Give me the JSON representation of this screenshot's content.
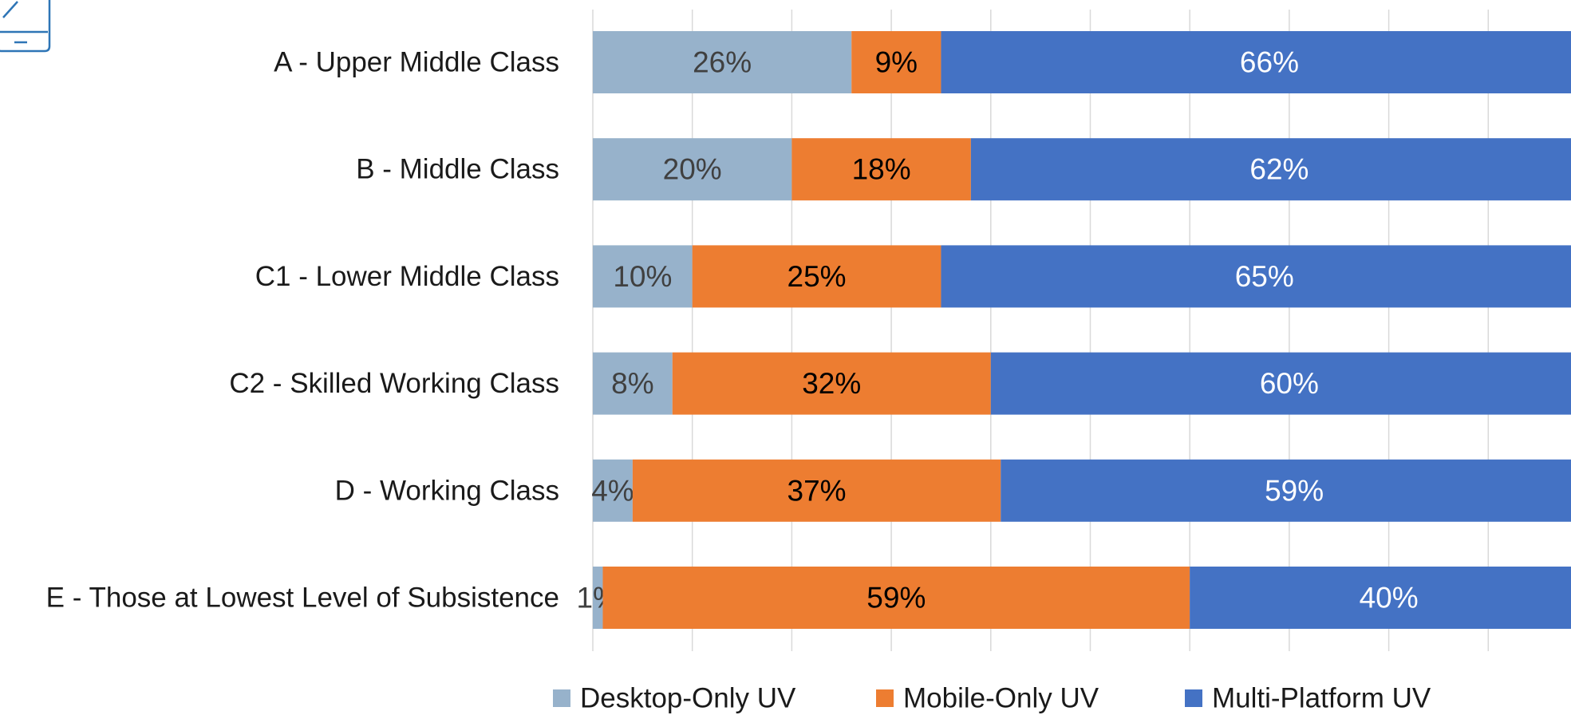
{
  "chart_data": {
    "type": "stacked_barh",
    "categories": [
      "A - Upper Middle Class",
      "B - Middle Class",
      "C1 - Lower Middle Class",
      "C2 - Skilled Working Class",
      "D - Working Class",
      "E - Those at Lowest Level of Subsistence"
    ],
    "series": [
      {
        "name": "Desktop-Only UV",
        "color": "#97b2cb",
        "label_color": "#404040",
        "values": [
          26,
          20,
          10,
          8,
          4,
          1
        ],
        "value_labels": [
          "26%",
          "20%",
          "10%",
          "8%",
          "4%",
          "1%"
        ]
      },
      {
        "name": "Mobile-Only UV",
        "color": "#ed7d31",
        "label_color": "#000000",
        "values": [
          9,
          18,
          25,
          32,
          37,
          59
        ],
        "value_labels": [
          "9%",
          "18%",
          "25%",
          "32%",
          "37%",
          "59%"
        ]
      },
      {
        "name": "Multi-Platform UV",
        "color": "#4472c4",
        "label_color": "#ffffff",
        "values": [
          66,
          62,
          65,
          60,
          59,
          40
        ],
        "value_labels": [
          "66%",
          "62%",
          "65%",
          "60%",
          "59%",
          "40%"
        ]
      }
    ],
    "xlim": [
      0,
      100
    ],
    "xticks": [
      0,
      10,
      20,
      30,
      40,
      50,
      60,
      70,
      80,
      90,
      100
    ],
    "grid": true,
    "legend": "bottom"
  }
}
